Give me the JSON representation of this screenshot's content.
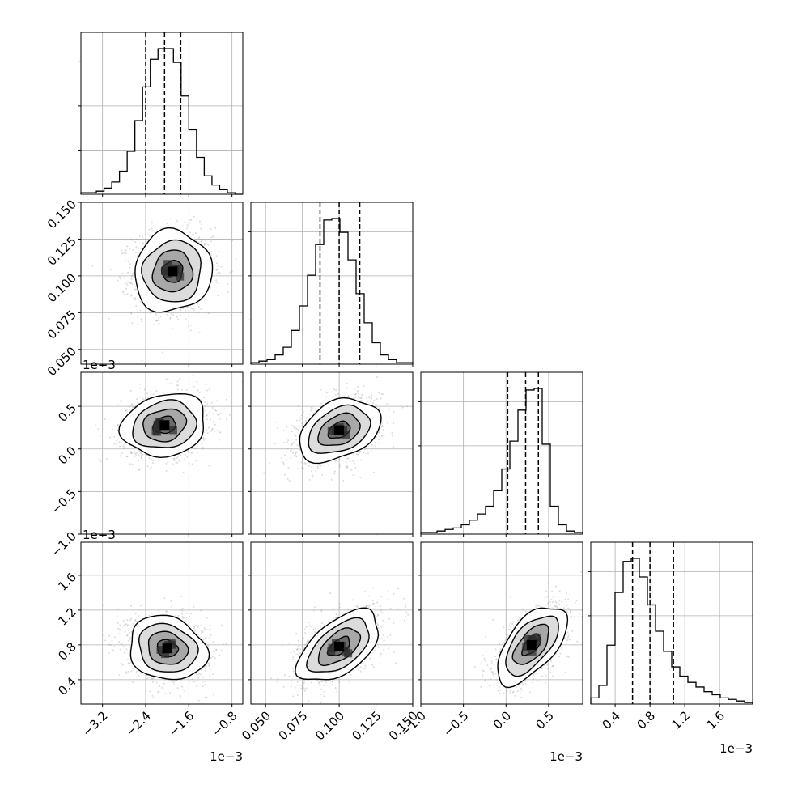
{
  "chart_data": {
    "type": "corner",
    "title": "",
    "parameters": [
      {
        "index": 0,
        "ylabel": "",
        "xlabel": "",
        "range": [
          -3.6,
          -0.6
        ],
        "ticks": [
          -3.2,
          -2.4,
          -1.6,
          -0.8
        ],
        "tick_labels": [
          "−3.2",
          "−2.4",
          "−1.6",
          "−0.8"
        ],
        "offset_label": "1e−3"
      },
      {
        "index": 1,
        "ylabel": "",
        "xlabel": "",
        "range": [
          0.04,
          0.15
        ],
        "ticks": [
          0.05,
          0.075,
          0.1,
          0.125,
          0.15
        ],
        "tick_labels": [
          "0.050",
          "0.075",
          "0.100",
          "0.125",
          "0.150"
        ],
        "offset_label": ""
      },
      {
        "index": 2,
        "ylabel": "",
        "xlabel": "",
        "range": [
          -1.0,
          0.9
        ],
        "ticks": [
          -1.0,
          -0.5,
          0.0,
          0.5
        ],
        "tick_labels": [
          "−1.0",
          "−0.5",
          "0.0",
          "0.5"
        ],
        "offset_label": "1e−3"
      },
      {
        "index": 3,
        "ylabel": "",
        "xlabel": "",
        "range": [
          0.12,
          1.98
        ],
        "ticks": [
          0.4,
          0.8,
          1.2,
          1.6
        ],
        "tick_labels": [
          "0.4",
          "0.8",
          "1.2",
          "1.6"
        ],
        "offset_label": "1e−3"
      }
    ],
    "offset_labels_rendered": [
      {
        "id": "y-offset-row1",
        "text": "1e−3"
      },
      {
        "id": "y-offset-row2",
        "text": "1e−3"
      },
      {
        "id": "x-offset-col0",
        "text": "1e−3"
      },
      {
        "id": "x-offset-col2",
        "text": "1e−3"
      },
      {
        "id": "x-offset-col3",
        "text": "1e−3"
      }
    ],
    "histograms": [
      {
        "param": 0,
        "bins": [
          -3.6,
          -0.6
        ],
        "quantiles": [
          -2.4,
          -2.05,
          -1.75
        ],
        "counts": [
          1,
          1,
          2,
          4,
          8,
          15,
          28,
          48,
          70,
          88,
          95,
          95,
          86,
          64,
          42,
          24,
          12,
          6,
          3,
          1,
          0
        ]
      },
      {
        "param": 1,
        "bins": [
          0.04,
          0.15
        ],
        "quantiles": [
          0.087,
          0.1,
          0.114
        ],
        "counts": [
          1,
          2,
          3,
          6,
          11,
          22,
          38,
          58,
          78,
          94,
          95,
          86,
          68,
          46,
          27,
          14,
          6,
          3,
          1,
          1
        ]
      },
      {
        "param": 2,
        "bins": [
          -1.0,
          0.9
        ],
        "quantiles": [
          0.02,
          0.23,
          0.38
        ],
        "counts": [
          1,
          1,
          2,
          3,
          4,
          6,
          9,
          13,
          18,
          28,
          42,
          60,
          80,
          93,
          94,
          58,
          18,
          6,
          2,
          1
        ]
      },
      {
        "param": 3,
        "bins": [
          0.12,
          1.98
        ],
        "quantiles": [
          0.6,
          0.8,
          1.07
        ],
        "counts": [
          4,
          12,
          38,
          72,
          92,
          94,
          82,
          64,
          47,
          34,
          24,
          18,
          14,
          11,
          8,
          6,
          4,
          3,
          2,
          1
        ]
      }
    ],
    "scatter_panels": [
      {
        "x_param": 0,
        "y_param": 1,
        "center": [
          -1.9,
          0.103
        ],
        "sigma": [
          0.35,
          0.0135
        ],
        "corr": 0.05
      },
      {
        "x_param": 0,
        "y_param": 2,
        "center": [
          -2.05,
          0.28
        ],
        "sigma": [
          0.38,
          0.18
        ],
        "corr": 0.15
      },
      {
        "x_param": 1,
        "y_param": 2,
        "center": [
          0.1,
          0.22
        ],
        "sigma": [
          0.0135,
          0.18
        ],
        "corr": 0.35
      },
      {
        "x_param": 0,
        "y_param": 3,
        "center": [
          -2.0,
          0.76
        ],
        "sigma": [
          0.35,
          0.18
        ],
        "corr": -0.15
      },
      {
        "x_param": 1,
        "y_param": 3,
        "center": [
          0.1,
          0.78
        ],
        "sigma": [
          0.0135,
          0.2
        ],
        "corr": 0.55
      },
      {
        "x_param": 2,
        "y_param": 3,
        "center": [
          0.3,
          0.8
        ],
        "sigma": [
          0.2,
          0.22
        ],
        "corr": 0.6
      }
    ],
    "contour_levels_sigma": [
      0.5,
      1.0,
      1.5,
      2.0
    ],
    "grid": true,
    "legend": "none"
  }
}
